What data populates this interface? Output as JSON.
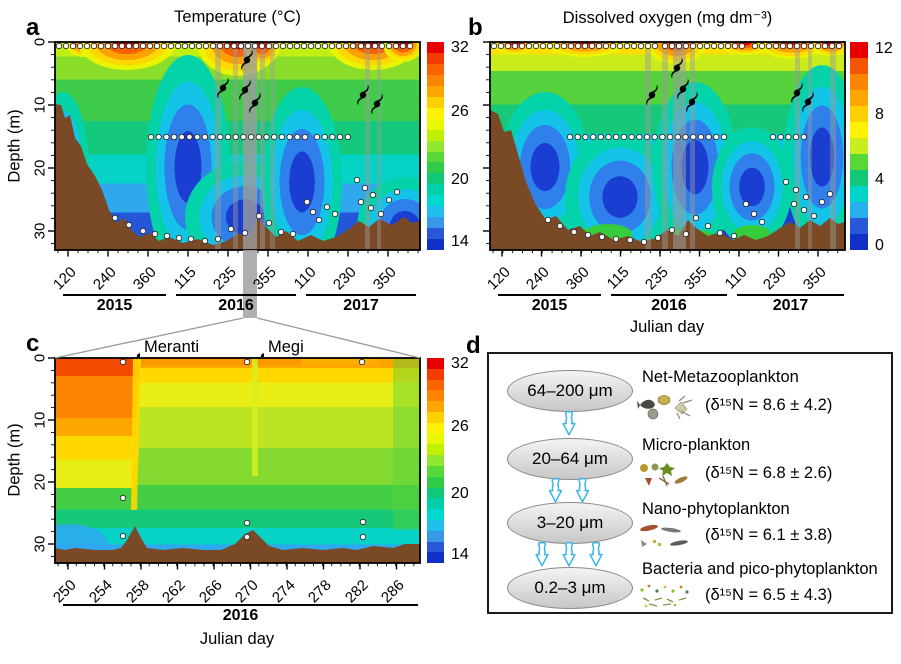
{
  "panel_a": {
    "label": "a",
    "title": "Temperature (°C)",
    "ylabel": "Depth (m)",
    "y_ticks": [
      "0",
      "10",
      "20",
      "30"
    ],
    "x_ticks": [
      "120",
      "240",
      "360",
      "115",
      "235",
      "355",
      "110",
      "230",
      "350"
    ],
    "year_groups": [
      "2015",
      "2016",
      "2017"
    ],
    "colorbar_ticks": [
      "32",
      "26",
      "20",
      "14"
    ]
  },
  "panel_b": {
    "label": "b",
    "title": "Dissolved oxygen (mg dm⁻³)",
    "xlabel": "Julian day",
    "x_ticks": [
      "120",
      "240",
      "360",
      "115",
      "235",
      "355",
      "110",
      "230",
      "350"
    ],
    "year_groups": [
      "2015",
      "2016",
      "2017"
    ],
    "colorbar_ticks": [
      "12",
      "8",
      "4",
      "0"
    ]
  },
  "panel_c": {
    "label": "c",
    "ylabel": "Depth (m)",
    "xlabel": "Julian day",
    "year": "2016",
    "y_ticks": [
      "0",
      "10",
      "20",
      "30"
    ],
    "x_ticks": [
      "250",
      "254",
      "258",
      "262",
      "266",
      "270",
      "274",
      "278",
      "282",
      "286"
    ],
    "colorbar_ticks": [
      "32",
      "26",
      "20",
      "14"
    ],
    "typhoons": [
      {
        "name": "Meranti"
      },
      {
        "name": "Megi"
      }
    ]
  },
  "panel_d": {
    "label": "d",
    "rows": [
      {
        "size": "64–200 μm",
        "name": "Net-Metazooplankton",
        "delta": "(δ¹⁵N = 8.6 ± 4.2)",
        "arrows_below": 1
      },
      {
        "size": "20–64 μm",
        "name": "Micro-plankton",
        "delta": "(δ¹⁵N = 6.8 ± 2.6)",
        "arrows_below": 2
      },
      {
        "size": "3–20 μm",
        "name": "Nano-phytoplankton",
        "delta": "(δ¹⁵N = 6.1 ± 3.8)",
        "arrows_below": 3
      },
      {
        "size": "0.2–3 μm",
        "name": "Bacteria and pico-phytoplankton",
        "delta": "(δ¹⁵N = 6.5 ± 4.3)",
        "arrows_below": 0
      }
    ]
  },
  "colors": {
    "temperature_palette_top_to_bottom": [
      "#e80000",
      "#f23b00",
      "#f96400",
      "#fb8500",
      "#fda600",
      "#ffd000",
      "#fff200",
      "#e8f800",
      "#c0f000",
      "#90e830",
      "#58d838",
      "#30cc48",
      "#10c878",
      "#00d0a8",
      "#00d8d0",
      "#20c0ea",
      "#3898e8",
      "#2858d8",
      "#1030c8"
    ],
    "oxygen_palette_top_to_bottom": [
      "#e80000",
      "#f55500",
      "#fb8500",
      "#fda600",
      "#ffd000",
      "#fff200",
      "#c8ee20",
      "#58d838",
      "#10c878",
      "#00d4c8",
      "#28b0ee",
      "#2858d8",
      "#1030c8"
    ],
    "seafloor": "#7a4a26",
    "event_band_gray": "#9c9c9c",
    "arrow_stroke": "#39b6e8"
  },
  "chart_data": [
    {
      "type": "heatmap",
      "panel": "a",
      "title": "Temperature (°C)",
      "x_axis": {
        "label": "Julian day",
        "tick_labels": [
          120,
          240,
          360,
          115,
          235,
          355,
          110,
          230,
          350
        ],
        "year_groups": [
          "2015",
          "2016",
          "2017"
        ]
      },
      "y_axis": {
        "label": "Depth (m)",
        "ticks": [
          0,
          10,
          20,
          30
        ],
        "range_m": [
          0,
          33
        ],
        "inverted": true
      },
      "colorbar": {
        "units": "°C",
        "range": [
          14,
          32
        ],
        "tick_labels_top_to_bottom": [
          32,
          26,
          20,
          14
        ]
      },
      "features": [
        "white circles = discrete sampling points",
        "black typhoon symbols = typhoon passages in 2016 and 2017",
        "gray vertical bands = typhoon periods",
        "brown region = seafloor bathymetry (max ~33 m)",
        "wide gray band over late 2016 marks interval enlarged in panel c"
      ]
    },
    {
      "type": "heatmap",
      "panel": "b",
      "title": "Dissolved oxygen (mg dm⁻³)",
      "x_axis": {
        "label": "Julian day",
        "tick_labels": [
          120,
          240,
          360,
          115,
          235,
          355,
          110,
          230,
          350
        ],
        "year_groups": [
          "2015",
          "2016",
          "2017"
        ]
      },
      "y_axis": {
        "label": "Depth (m)",
        "ticks": [
          0,
          10,
          20,
          30
        ],
        "range_m": [
          0,
          33
        ],
        "inverted": true
      },
      "colorbar": {
        "units": "mg dm⁻³",
        "range": [
          0,
          12
        ],
        "tick_labels_top_to_bottom": [
          12,
          8,
          4,
          0
        ]
      },
      "features": [
        "white circles = discrete sampling points",
        "black typhoon symbols = typhoon passages",
        "gray vertical bands = typhoon periods",
        "brown region = seafloor bathymetry",
        "low-oxygen (blue) water at depth; oxygenated (yellow/orange) surface layer"
      ]
    },
    {
      "type": "heatmap",
      "panel": "c",
      "title": "Temperature (°C) — enlargement of Julian days 250–288, 2016",
      "x_axis": {
        "label": "Julian day",
        "tick_labels": [
          250,
          254,
          258,
          262,
          266,
          270,
          274,
          278,
          282,
          286
        ],
        "year_groups": [
          "2016"
        ],
        "range": [
          250,
          288
        ]
      },
      "y_axis": {
        "label": "Depth (m)",
        "ticks": [
          0,
          10,
          20,
          30
        ],
        "range_m": [
          0,
          33
        ],
        "inverted": true
      },
      "colorbar": {
        "units": "°C",
        "range": [
          14,
          32
        ],
        "tick_labels_top_to_bottom": [
          32,
          26,
          20,
          14
        ]
      },
      "events": [
        {
          "name": "Meranti",
          "type": "typhoon",
          "julian_day": 258
        },
        {
          "name": "Megi",
          "type": "typhoon",
          "julian_day": 271
        }
      ],
      "features": [
        "warm (red/orange) surface layer before Typhoon Meranti, surface cooling afterwards",
        "white circles = sampling points",
        "brown region = seafloor"
      ]
    },
    {
      "type": "diagram",
      "panel": "d",
      "title": "Plankton size-fraction cascade with δ¹⁵N values",
      "nodes": [
        {
          "size_fraction": "64–200 μm",
          "group": "Net-Metazooplankton",
          "d15N_mean": 8.6,
          "d15N_sd": 4.2
        },
        {
          "size_fraction": "20–64 μm",
          "group": "Micro-plankton",
          "d15N_mean": 6.8,
          "d15N_sd": 2.6
        },
        {
          "size_fraction": "3–20 μm",
          "group": "Nano-phytoplankton",
          "d15N_mean": 6.1,
          "d15N_sd": 3.8
        },
        {
          "size_fraction": "0.2–3 μm",
          "group": "Bacteria and pico-phytoplankton",
          "d15N_mean": 6.5,
          "d15N_sd": 4.3
        }
      ],
      "links": [
        {
          "from": "64–200 μm",
          "to": "20–64 μm",
          "arrows": 1
        },
        {
          "from": "20–64 μm",
          "to": "3–20 μm",
          "arrows": 2
        },
        {
          "from": "3–20 μm",
          "to": "0.2–3 μm",
          "arrows": 3
        }
      ]
    }
  ]
}
